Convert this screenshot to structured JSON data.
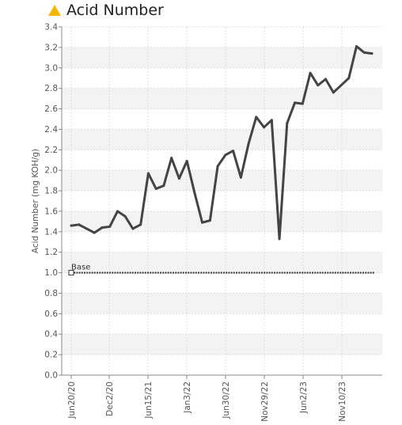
{
  "header": {
    "title": "Acid Number",
    "icon": "warning-triangle-icon",
    "icon_color": "#f5b800"
  },
  "chart_data": {
    "type": "line",
    "title": "Acid Number",
    "ylabel": "Acid Number (mg KOH/g)",
    "xlabel": "",
    "ylim": [
      0.0,
      3.4
    ],
    "yticks": [
      "0.0",
      "0.2",
      "0.4",
      "0.6",
      "0.8",
      "1.0",
      "1.2",
      "1.4",
      "1.6",
      "1.8",
      "2.0",
      "2.2",
      "2.4",
      "2.6",
      "2.8",
      "3.0",
      "3.2",
      "3.4"
    ],
    "xticks": [
      "Jun20/20",
      "Dec2/20",
      "Jun15/21",
      "Jan3/22",
      "Jun30/22",
      "Nov29/22",
      "Jun2/23",
      "Nov10/23"
    ],
    "grid": true,
    "series": [
      {
        "values": [
          1.46,
          1.47,
          1.43,
          1.39,
          1.44,
          1.45,
          1.6,
          1.55,
          1.43,
          1.47,
          1.97,
          1.82,
          1.85,
          2.12,
          1.92,
          2.09,
          1.78,
          1.49,
          1.51,
          2.04,
          2.15,
          2.19,
          1.93,
          2.26,
          2.52,
          2.42,
          2.49,
          1.33,
          2.46,
          2.66,
          2.65,
          2.95,
          2.83,
          2.89,
          2.76,
          2.83,
          2.9,
          3.21,
          3.15,
          3.14
        ],
        "color": "#444444"
      },
      {
        "name": "Base",
        "values": [
          1.0,
          1.0
        ],
        "color": "#333333",
        "style": "dotted"
      }
    ]
  }
}
